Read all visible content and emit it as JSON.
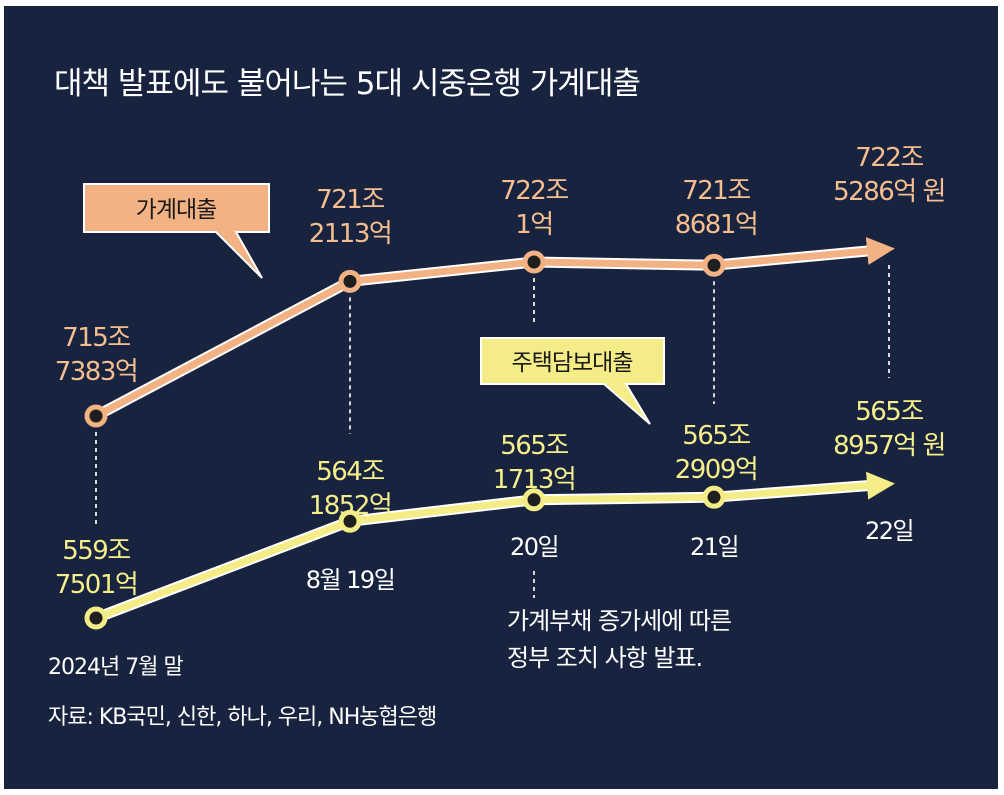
{
  "chart_data": {
    "type": "line",
    "title": "대책 발표에도 불어나는 5대 시중은행 가계대출",
    "source": "자료: KB국민, 신한, 하나, 우리, NH농협은행",
    "categories": [
      "2024년 7월 말",
      "8월 19일",
      "20일",
      "21일",
      "22일"
    ],
    "series": [
      {
        "name": "가계대출",
        "color": "#f2b283",
        "values": [
          7157383,
          7212113,
          7220001,
          7218681,
          7225286
        ],
        "labels": [
          [
            "715조",
            "7383억"
          ],
          [
            "721조",
            "2113억"
          ],
          [
            "722조",
            "1억"
          ],
          [
            "721조",
            "8681억"
          ],
          [
            "722조",
            "5286억 원"
          ]
        ]
      },
      {
        "name": "주택담보대출",
        "color": "#f4ec86",
        "values": [
          5597501,
          5641852,
          5651713,
          5652909,
          5658957
        ],
        "labels": [
          [
            "559조",
            "7501억"
          ],
          [
            "564조",
            "1852억"
          ],
          [
            "565조",
            "1713억"
          ],
          [
            "565조",
            "2909억"
          ],
          [
            "565조",
            "8957억 원"
          ]
        ]
      }
    ],
    "unit": "억 원",
    "annotation": [
      "가계부채 증가세에 따른",
      "정부 조치 사항 발표."
    ]
  }
}
